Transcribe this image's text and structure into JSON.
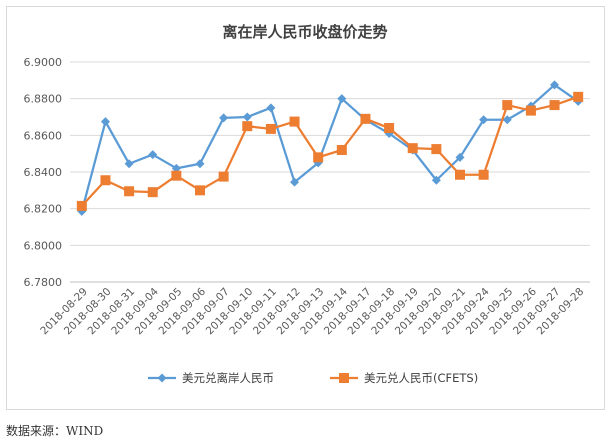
{
  "chart_data": {
    "type": "line",
    "title": "离在岸人民币收盘价走势",
    "xlabel": "",
    "ylabel": "",
    "ylim": [
      6.78,
      6.9
    ],
    "y_ticks": [
      "6.7800",
      "6.8000",
      "6.8200",
      "6.8400",
      "6.8600",
      "6.8800",
      "6.9000"
    ],
    "grid": true,
    "legend_position": "bottom",
    "categories": [
      "2018-08-29",
      "2018-08-30",
      "2018-08-31",
      "2018-09-04",
      "2018-09-05",
      "2018-09-06",
      "2018-09-07",
      "2018-09-10",
      "2018-09-11",
      "2018-09-12",
      "2018-09-13",
      "2018-09-14",
      "2018-09-17",
      "2018-09-18",
      "2018-09-19",
      "2018-09-20",
      "2018-09-21",
      "2018-09-24",
      "2018-09-25",
      "2018-09-26",
      "2018-09-27",
      "2018-09-28"
    ],
    "series": [
      {
        "name": "美元兑离岸人民币",
        "color": "#5b9bd5",
        "marker": "diamond",
        "values": [
          6.8185,
          6.8675,
          6.8445,
          6.8495,
          6.842,
          6.8445,
          6.8695,
          6.87,
          6.875,
          6.8345,
          6.845,
          6.88,
          6.8685,
          6.861,
          6.852,
          6.8355,
          6.848,
          6.8685,
          6.8685,
          6.876,
          6.8875,
          6.8785
        ]
      },
      {
        "name": "美元兑人民币(CFETS)",
        "color": "#ed7d31",
        "marker": "square",
        "values": [
          6.8215,
          6.8355,
          6.8295,
          6.829,
          6.838,
          6.83,
          6.8375,
          6.865,
          6.8635,
          6.8675,
          6.848,
          6.852,
          6.869,
          6.864,
          6.853,
          6.8525,
          6.8385,
          6.8385,
          6.8765,
          6.8735,
          6.8765,
          6.881
        ]
      }
    ]
  },
  "source_note": "数据来源：WIND"
}
